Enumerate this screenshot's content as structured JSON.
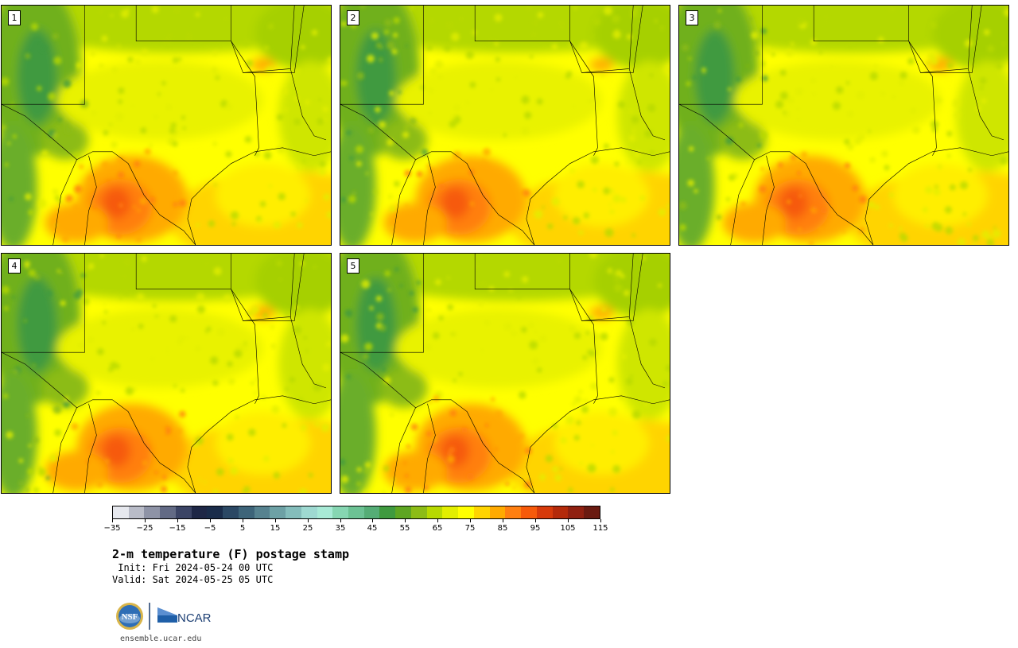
{
  "panels": [
    {
      "label": "1"
    },
    {
      "label": "2"
    },
    {
      "label": "3"
    },
    {
      "label": "4"
    },
    {
      "label": "5"
    }
  ],
  "colorbar": {
    "colors": [
      "#e6e8ee",
      "#b9bcc8",
      "#8e93a6",
      "#626a85",
      "#3b4465",
      "#1e2746",
      "#1a2c4a",
      "#2b4864",
      "#3d6479",
      "#56828f",
      "#6da1a5",
      "#84bdbb",
      "#9ed9d1",
      "#a8ead6",
      "#86d6b2",
      "#6cc294",
      "#55ad76",
      "#3f9a3f",
      "#5ea622",
      "#8cbc16",
      "#b7d900",
      "#e2ee00",
      "#ffff00",
      "#ffd400",
      "#ffaa00",
      "#ff7f10",
      "#f65a0a",
      "#d73a0a",
      "#b42a0a",
      "#902010",
      "#6a1a10"
    ],
    "tick_labels": [
      "−35",
      "−25",
      "−15",
      "−5",
      "5",
      "15",
      "25",
      "35",
      "45",
      "55",
      "65",
      "75",
      "85",
      "95",
      "105",
      "115"
    ]
  },
  "title": "2-m temperature (F) postage stamp",
  "init_line": " Init: Fri 2024-05-24 00 UTC",
  "valid_line": "Valid: Sat 2024-05-25 05 UTC",
  "logos": {
    "nsf": "NSF",
    "ncar": "NCAR"
  },
  "url": "ensemble.ucar.edu"
}
